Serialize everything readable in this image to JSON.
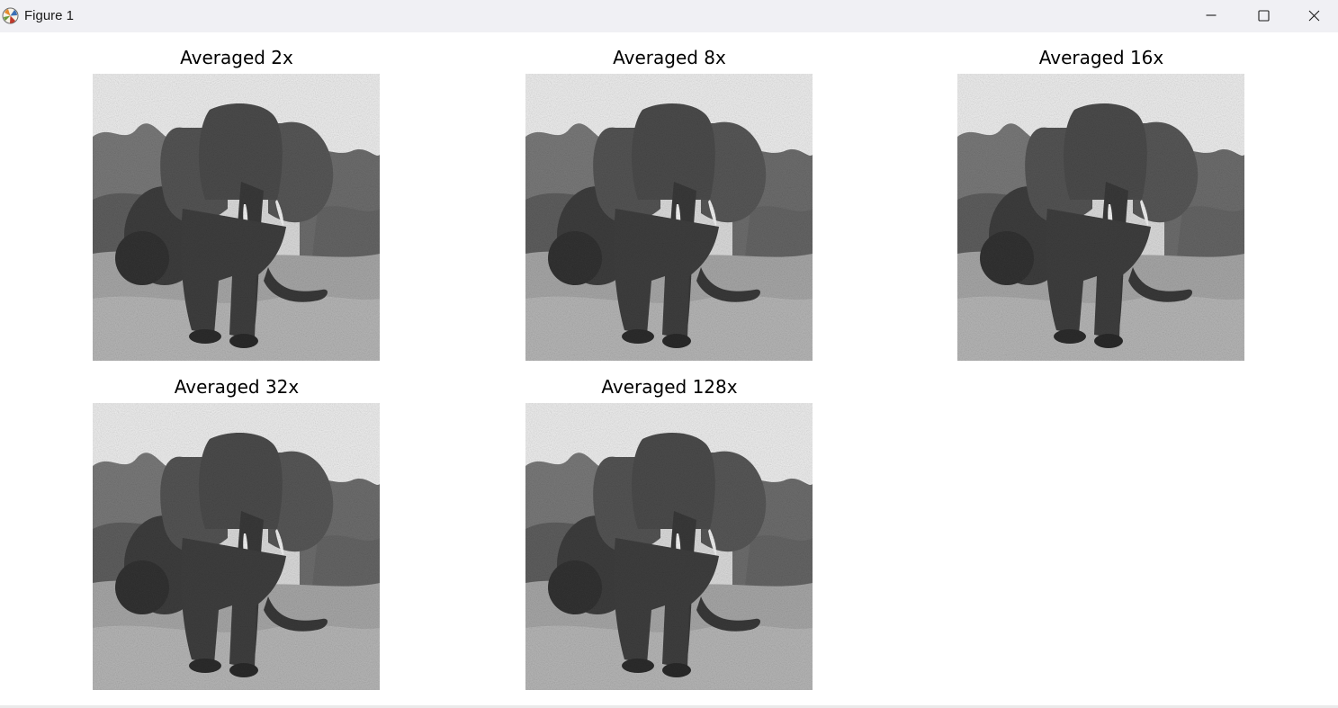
{
  "window": {
    "title": "Figure 1",
    "icons": {
      "app": "matplotlib-figure-icon",
      "minimize": "minimize-icon",
      "maximize": "maximize-icon",
      "close": "close-icon"
    }
  },
  "figure": {
    "panels": [
      {
        "title": "Averaged 2x",
        "image": "noisy-elephant-photo"
      },
      {
        "title": "Averaged 8x",
        "image": "noisy-elephant-photo"
      },
      {
        "title": "Averaged 16x",
        "image": "noisy-elephant-photo"
      },
      {
        "title": "Averaged 32x",
        "image": "noisy-elephant-photo"
      },
      {
        "title": "Averaged 128x",
        "image": "noisy-elephant-photo"
      }
    ]
  }
}
